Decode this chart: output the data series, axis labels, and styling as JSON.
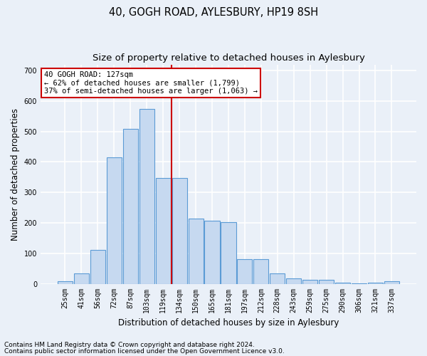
{
  "title": "40, GOGH ROAD, AYLESBURY, HP19 8SH",
  "subtitle": "Size of property relative to detached houses in Aylesbury",
  "xlabel": "Distribution of detached houses by size in Aylesbury",
  "ylabel": "Number of detached properties",
  "categories": [
    "25sqm",
    "41sqm",
    "56sqm",
    "72sqm",
    "87sqm",
    "103sqm",
    "119sqm",
    "134sqm",
    "150sqm",
    "165sqm",
    "181sqm",
    "197sqm",
    "212sqm",
    "228sqm",
    "243sqm",
    "259sqm",
    "275sqm",
    "290sqm",
    "306sqm",
    "321sqm",
    "337sqm"
  ],
  "values": [
    8,
    35,
    112,
    415,
    508,
    575,
    348,
    347,
    213,
    207,
    203,
    80,
    80,
    35,
    18,
    12,
    12,
    3,
    2,
    3,
    8
  ],
  "bar_color": "#c6d9f0",
  "bar_edge_color": "#5b9bd5",
  "vline_x": 6.5,
  "vline_color": "#cc0000",
  "annotation_text": "40 GOGH ROAD: 127sqm\n← 62% of detached houses are smaller (1,799)\n37% of semi-detached houses are larger (1,063) →",
  "annotation_box_color": "#ffffff",
  "annotation_box_edge": "#cc0000",
  "ylim": [
    0,
    720
  ],
  "yticks": [
    0,
    100,
    200,
    300,
    400,
    500,
    600,
    700
  ],
  "footer_line1": "Contains HM Land Registry data © Crown copyright and database right 2024.",
  "footer_line2": "Contains public sector information licensed under the Open Government Licence v3.0.",
  "bg_color": "#eaf0f8",
  "grid_color": "#ffffff",
  "title_fontsize": 10.5,
  "subtitle_fontsize": 9.5,
  "label_fontsize": 8.5,
  "tick_fontsize": 7,
  "footer_fontsize": 6.5,
  "ann_fontsize": 7.5
}
